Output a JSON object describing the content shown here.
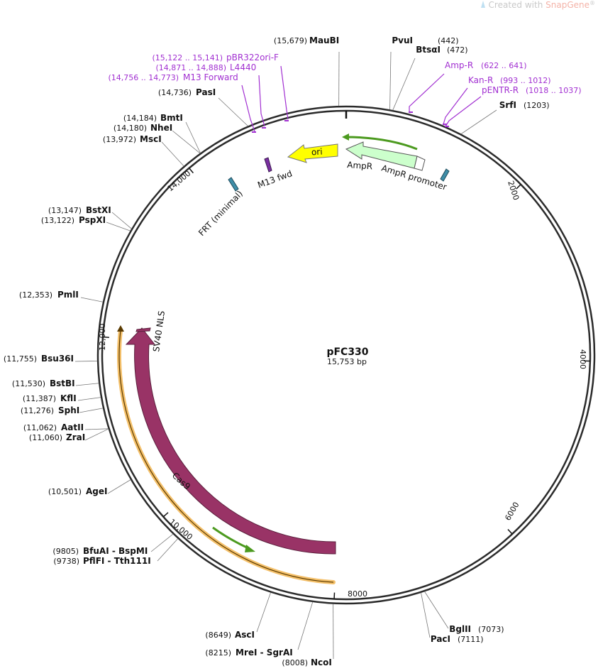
{
  "watermark": {
    "prefix": "Created with ",
    "brand": "SnapGene",
    "mark": "®"
  },
  "plasmid": {
    "name": "pFC330",
    "length_label": "15,753 bp",
    "total_bp": 15753
  },
  "ticks": [
    {
      "bp": 2000,
      "label": "2000"
    },
    {
      "bp": 4000,
      "label": "4000"
    },
    {
      "bp": 6000,
      "label": "6000"
    },
    {
      "bp": 8000,
      "label": "8000"
    },
    {
      "bp": 10000,
      "label": "10,000"
    },
    {
      "bp": 12000,
      "label": "12,000"
    },
    {
      "bp": 14000,
      "label": "14,000"
    }
  ],
  "sites": [
    {
      "id": "maubi",
      "pos": "(15,679)",
      "name": "MauBI",
      "bp": 15679
    },
    {
      "id": "pvui",
      "pos": "(442)",
      "name": "PvuI",
      "bp": 442
    },
    {
      "id": "btsai",
      "pos": "(472)",
      "name": "BtsαI",
      "bp": 472
    },
    {
      "id": "srfi",
      "pos": "(1203)",
      "name": "SrfI",
      "bp": 1203
    },
    {
      "id": "bglii",
      "pos": "(7073)",
      "name": "BglII",
      "bp": 7073
    },
    {
      "id": "paci",
      "pos": "(7111)",
      "name": "PacI",
      "bp": 7111
    },
    {
      "id": "ncoi",
      "pos": "(8008)",
      "name": "NcoI",
      "bp": 8008
    },
    {
      "id": "mrei",
      "pos": "(8215)",
      "name": "MreI  - SgrAI",
      "bp": 8215
    },
    {
      "id": "asci",
      "pos": "(8649)",
      "name": "AscI",
      "bp": 8649
    },
    {
      "id": "pflfi",
      "pos": "(9738)",
      "name": "PflFI  - Tth111I",
      "bp": 9738
    },
    {
      "id": "bfuai",
      "pos": "(9805)",
      "name": "BfuAI  - BspMI",
      "bp": 9805
    },
    {
      "id": "agei",
      "pos": "(10,501)",
      "name": "AgeI",
      "bp": 10501
    },
    {
      "id": "zrai",
      "pos": "(11,060)",
      "name": "ZraI",
      "bp": 11060
    },
    {
      "id": "aatii",
      "pos": "(11,062)",
      "name": "AatII",
      "bp": 11062
    },
    {
      "id": "sphi",
      "pos": "(11,276)",
      "name": "SphI",
      "bp": 11276
    },
    {
      "id": "kfli",
      "pos": "(11,387)",
      "name": "KflI",
      "bp": 11387
    },
    {
      "id": "bstbi",
      "pos": "(11,530)",
      "name": "BstBI",
      "bp": 11530
    },
    {
      "id": "bsu36i",
      "pos": "(11,755)",
      "name": "Bsu36I",
      "bp": 11755
    },
    {
      "id": "pmli",
      "pos": "(12,353)",
      "name": "PmlI",
      "bp": 12353
    },
    {
      "id": "pspxi",
      "pos": "(13,122)",
      "name": "PspXI",
      "bp": 13122
    },
    {
      "id": "bstxi",
      "pos": "(13,147)",
      "name": "BstXI",
      "bp": 13147
    },
    {
      "id": "msci",
      "pos": "(13,972)",
      "name": "MscI",
      "bp": 13972
    },
    {
      "id": "nhei",
      "pos": "(14,180)",
      "name": "NheI",
      "bp": 14180
    },
    {
      "id": "bmti",
      "pos": "(14,184)",
      "name": "BmtI",
      "bp": 14184
    },
    {
      "id": "pasi",
      "pos": "(14,736)",
      "name": "PasI",
      "bp": 14736
    }
  ],
  "primers": [
    {
      "id": "pbr322ori-f",
      "pos": "(15,122 .. 15,141)",
      "name": "pBR322ori-F",
      "bp": 15131
    },
    {
      "id": "l4440",
      "pos": "(14,871 .. 14,888)",
      "name": "L4440",
      "bp": 14880
    },
    {
      "id": "m13-forward",
      "pos": "(14,756 .. 14,773)",
      "name": "M13 Forward",
      "bp": 14765
    },
    {
      "id": "amp-r",
      "name": "Amp-R",
      "pos": "(622 .. 641)",
      "bp": 631
    },
    {
      "id": "kan-r",
      "name": "Kan-R",
      "pos": "(993 .. 1012)",
      "bp": 1002
    },
    {
      "id": "pentr-r",
      "name": "pENTR-R",
      "pos": "(1018 .. 1037)",
      "bp": 1027
    }
  ],
  "features": {
    "ori": "ori",
    "ampr": "AmpR",
    "ampr_promoter": "AmpR promoter",
    "m13_fwd": "M13 fwd",
    "frt": "FRT (minimal)",
    "cas9": "Cas9",
    "sv40_nls": "SV40 NLS"
  },
  "colors": {
    "backbone": "#2b2b2b",
    "ori": "#ffff00",
    "ampr": "#ccffcc",
    "cas9": "#993366",
    "orf_track": "#f4c06a",
    "orf_arrow": "#4c9a1f",
    "primer": "#a12fd1",
    "frt": "#3f8ea8"
  }
}
